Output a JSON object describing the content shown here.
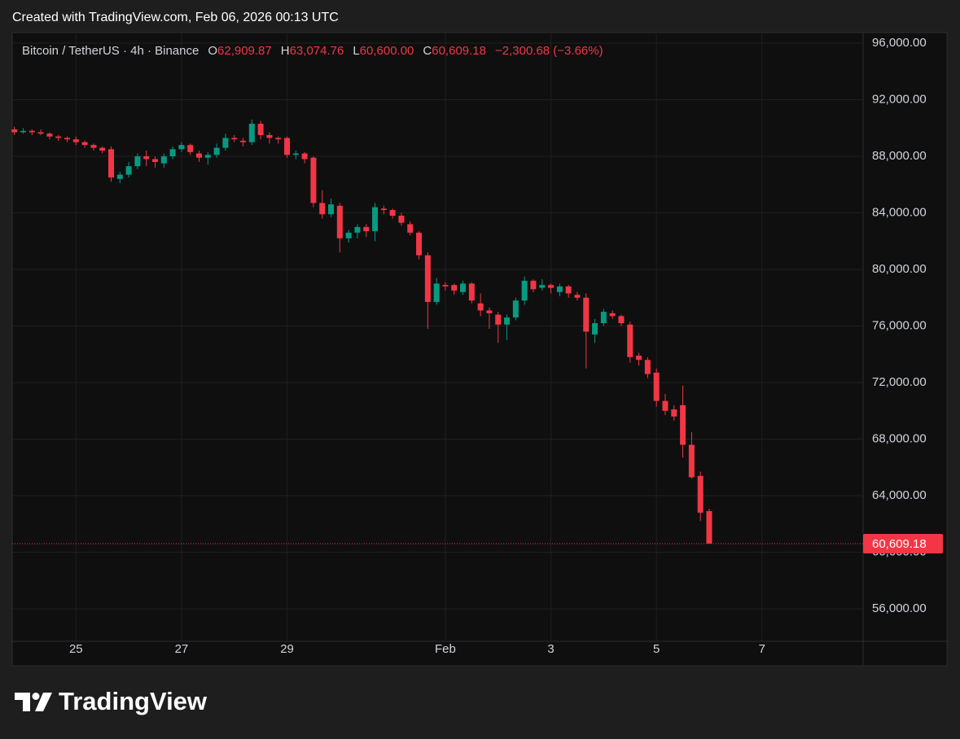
{
  "header": {
    "title": "Created with TradingView.com, Feb 06, 2026 00:13 UTC"
  },
  "footer": {
    "brand": "TradingView"
  },
  "chart_data": {
    "type": "candlestick",
    "symbol": "Bitcoin / TetherUS · 4h · Binance",
    "legend": {
      "open_key": "O",
      "open": "62,909.87",
      "high_key": "H",
      "high": "63,074.76",
      "low_key": "L",
      "low": "60,600.00",
      "close_key": "C",
      "close": "60,609.18",
      "change": "−2,300.68 (−3.66%)"
    },
    "up_color": "#089981",
    "down_color": "#f23645",
    "grid": true,
    "xlim": [
      -29,
      358
    ],
    "xticks": [
      {
        "value": 0,
        "label": "25"
      },
      {
        "value": 48,
        "label": "27"
      },
      {
        "value": 96,
        "label": "29"
      },
      {
        "value": 168,
        "label": "Feb"
      },
      {
        "value": 216,
        "label": "3"
      },
      {
        "value": 264,
        "label": "5"
      },
      {
        "value": 312,
        "label": "7"
      }
    ],
    "ylim": [
      53700,
      96750
    ],
    "yticks": [
      {
        "value": 56000,
        "label": "56,000.00"
      },
      {
        "value": 60000,
        "label": "60,000.00"
      },
      {
        "value": 64000,
        "label": "64,000.00"
      },
      {
        "value": 68000,
        "label": "68,000.00"
      },
      {
        "value": 72000,
        "label": "72,000.00"
      },
      {
        "value": 76000,
        "label": "76,000.00"
      },
      {
        "value": 80000,
        "label": "80,000.00"
      },
      {
        "value": 84000,
        "label": "84,000.00"
      },
      {
        "value": 88000,
        "label": "88,000.00"
      },
      {
        "value": 92000,
        "label": "92,000.00"
      },
      {
        "value": 96000,
        "label": "96,000.00"
      }
    ],
    "last_price": {
      "value": 60609.18,
      "label": "60,609.18"
    },
    "x": [
      -28,
      -24,
      -20,
      -16,
      -12,
      -8,
      -4,
      0,
      4,
      8,
      12,
      16,
      20,
      24,
      28,
      32,
      36,
      40,
      44,
      48,
      52,
      56,
      60,
      64,
      68,
      72,
      76,
      80,
      84,
      88,
      92,
      96,
      100,
      104,
      108,
      112,
      116,
      120,
      124,
      128,
      132,
      136,
      140,
      144,
      148,
      152,
      156,
      160,
      164,
      168,
      172,
      176,
      180,
      184,
      188,
      192,
      196,
      200,
      204,
      208,
      212,
      216,
      220,
      224,
      228,
      232,
      236,
      240,
      244,
      248,
      252,
      256,
      260,
      264,
      268,
      272,
      276,
      280,
      284,
      288
    ],
    "open": [
      89900,
      89700,
      89800,
      89700,
      89600,
      89400,
      89300,
      89200,
      89000,
      88800,
      88600,
      88500,
      86400,
      86700,
      87300,
      88000,
      87800,
      87500,
      88000,
      88500,
      88800,
      88200,
      87900,
      88100,
      88600,
      89300,
      89100,
      89000,
      90300,
      89500,
      89300,
      89300,
      88100,
      88200,
      87900,
      84700,
      83900,
      84500,
      82200,
      82600,
      83000,
      82700,
      84300,
      84200,
      83800,
      83200,
      82600,
      81000,
      77700,
      78900,
      78900,
      78400,
      79000,
      77600,
      77100,
      76800,
      76100,
      76600,
      77800,
      79200,
      78700,
      78900,
      78400,
      78800,
      78200,
      78000,
      75400,
      76200,
      76900,
      76700,
      76100,
      73900,
      73600,
      72700,
      70700,
      70100,
      70400,
      67600,
      65400,
      62909.87
    ],
    "high": [
      90100,
      90000,
      89900,
      89900,
      89700,
      89500,
      89400,
      89400,
      89100,
      88900,
      88700,
      88700,
      86900,
      87600,
      88200,
      88400,
      88000,
      88200,
      88700,
      89000,
      88900,
      88400,
      88300,
      88900,
      89600,
      89500,
      89300,
      90600,
      90500,
      89700,
      89400,
      89400,
      88400,
      88300,
      88000,
      85600,
      85000,
      84700,
      82800,
      83200,
      83200,
      84700,
      84500,
      84300,
      84000,
      83400,
      82700,
      81200,
      79400,
      79100,
      79000,
      79200,
      79100,
      78300,
      77300,
      77000,
      76800,
      78000,
      79500,
      79300,
      79300,
      79000,
      79000,
      78900,
      78400,
      78300,
      76500,
      77200,
      77100,
      76800,
      76300,
      74100,
      73800,
      73000,
      71200,
      70400,
      71800,
      68500,
      65700,
      63074.76
    ],
    "low": [
      89500,
      89600,
      89500,
      89500,
      89200,
      89100,
      89000,
      88800,
      88600,
      88400,
      88200,
      86200,
      86100,
      86500,
      87100,
      87300,
      87200,
      87200,
      87800,
      88300,
      88100,
      87600,
      87400,
      87900,
      88400,
      89000,
      88700,
      88800,
      89200,
      88900,
      88900,
      87900,
      87800,
      87500,
      84400,
      83600,
      83700,
      81200,
      81900,
      82200,
      82300,
      82000,
      83900,
      83600,
      83100,
      82400,
      80700,
      75800,
      77500,
      78500,
      78200,
      78200,
      77600,
      76700,
      75800,
      74800,
      75000,
      76400,
      77500,
      78400,
      78500,
      78300,
      78100,
      78000,
      77800,
      73000,
      74800,
      76000,
      76500,
      76000,
      73400,
      73200,
      72300,
      70300,
      69700,
      69300,
      66700,
      65200,
      62200,
      60600
    ],
    "close": [
      89700,
      89800,
      89700,
      89600,
      89400,
      89300,
      89200,
      89000,
      88800,
      88600,
      88400,
      86500,
      86700,
      87300,
      88000,
      87800,
      87600,
      88000,
      88500,
      88800,
      88300,
      87900,
      88100,
      88600,
      89300,
      89200,
      89000,
      90300,
      89500,
      89300,
      89200,
      88100,
      88200,
      87800,
      84700,
      83900,
      84600,
      82200,
      82600,
      83000,
      82700,
      84400,
      84200,
      83800,
      83300,
      82600,
      81000,
      77700,
      79000,
      78800,
      78500,
      79000,
      77800,
      77100,
      76900,
      76100,
      76600,
      77800,
      79200,
      78600,
      78900,
      78700,
      78800,
      78300,
      78000,
      75600,
      76200,
      77000,
      76700,
      76200,
      73800,
      73600,
      72600,
      70700,
      70000,
      69600,
      67600,
      65300,
      62800,
      60609.18
    ]
  }
}
